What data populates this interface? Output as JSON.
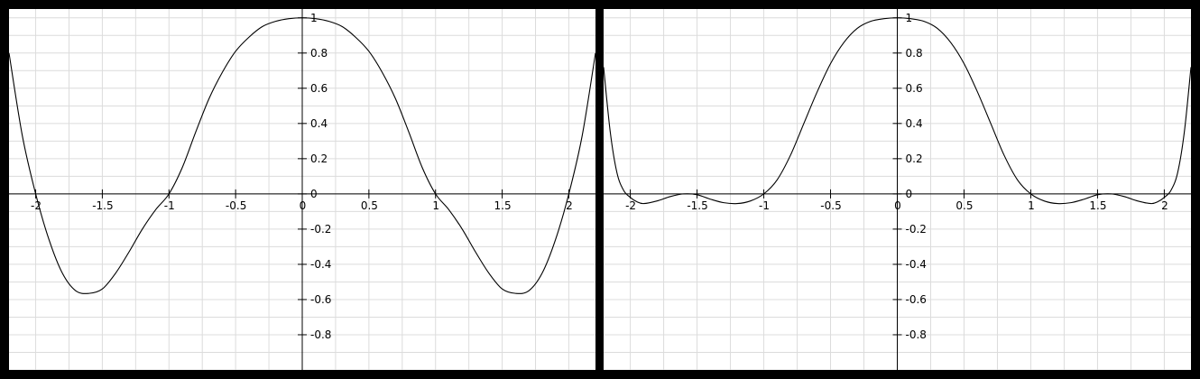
{
  "colors": {
    "background": "#000000",
    "plot_background": "#ffffff",
    "grid": "#dcdcdc",
    "axis": "#000000",
    "curve": "#000000"
  },
  "chart_data": [
    {
      "type": "line",
      "xlim": [
        -2.2,
        2.2
      ],
      "ylim": [
        -1.0,
        1.05
      ],
      "grid": true,
      "x_ticks": [
        -2,
        -1.5,
        -1,
        -0.5,
        0,
        0.5,
        1,
        1.5,
        2
      ],
      "y_ticks": [
        -0.8,
        -0.6,
        -0.4,
        -0.2,
        0,
        0.2,
        0.4,
        0.6,
        0.8,
        1
      ],
      "x_tick_labels": [
        "-2",
        "-1.5",
        "-1",
        "-0.5",
        "0",
        "0.5",
        "1",
        "1.5",
        "2"
      ],
      "y_tick_labels": [
        "-0.8",
        "-0.6",
        "-0.4",
        "-0.2",
        "0",
        "0.2",
        "0.4",
        "0.6",
        "0.8",
        "1"
      ],
      "series": [
        {
          "x": [
            -2.2,
            -2.1,
            -2.0,
            -1.9,
            -1.8,
            -1.7,
            -1.6,
            -1.5,
            -1.4,
            -1.3,
            -1.2,
            -1.1,
            -1.0,
            -0.9,
            -0.8,
            -0.7,
            -0.6,
            -0.5,
            -0.4,
            -0.3,
            -0.2,
            -0.1,
            0.0,
            0.1,
            0.2,
            0.3,
            0.4,
            0.5,
            0.6,
            0.7,
            0.8,
            0.9,
            1.0,
            1.1,
            1.2,
            1.3,
            1.4,
            1.5,
            1.6,
            1.7,
            1.8,
            1.9,
            2.0,
            2.1,
            2.2
          ],
          "y": [
            0.8,
            0.33,
            0.0,
            -0.26,
            -0.45,
            -0.55,
            -0.565,
            -0.54,
            -0.45,
            -0.33,
            -0.2,
            -0.09,
            0.0,
            0.15,
            0.35,
            0.54,
            0.69,
            0.81,
            0.89,
            0.95,
            0.98,
            0.995,
            1.0,
            0.995,
            0.98,
            0.95,
            0.89,
            0.81,
            0.69,
            0.54,
            0.35,
            0.15,
            0.0,
            -0.09,
            -0.2,
            -0.33,
            -0.45,
            -0.54,
            -0.565,
            -0.55,
            -0.45,
            -0.26,
            0.0,
            0.33,
            0.8
          ]
        }
      ]
    },
    {
      "type": "line",
      "xlim": [
        -2.2,
        2.2
      ],
      "ylim": [
        -1.0,
        1.05
      ],
      "grid": true,
      "x_ticks": [
        -2,
        -1.5,
        -1,
        -0.5,
        0,
        0.5,
        1,
        1.5,
        2
      ],
      "y_ticks": [
        -0.8,
        -0.6,
        -0.4,
        -0.2,
        0,
        0.2,
        0.4,
        0.6,
        0.8,
        1
      ],
      "x_tick_labels": [
        "-2",
        "-1.5",
        "-1",
        "-0.5",
        "0",
        "0.5",
        "1",
        "1.5",
        "2"
      ],
      "y_tick_labels": [
        "-0.8",
        "-0.6",
        "-0.4",
        "-0.2",
        "0",
        "0.2",
        "0.4",
        "0.6",
        "0.8",
        "1"
      ],
      "series": [
        {
          "x": [
            -2.2,
            -2.15,
            -2.1,
            -2.05,
            -2.0,
            -1.95,
            -1.9,
            -1.8,
            -1.7,
            -1.6,
            -1.5,
            -1.4,
            -1.3,
            -1.2,
            -1.1,
            -1.0,
            -0.9,
            -0.8,
            -0.7,
            -0.6,
            -0.5,
            -0.4,
            -0.3,
            -0.2,
            -0.1,
            0.0,
            0.1,
            0.2,
            0.3,
            0.4,
            0.5,
            0.6,
            0.7,
            0.8,
            0.9,
            1.0,
            1.1,
            1.2,
            1.3,
            1.4,
            1.5,
            1.6,
            1.7,
            1.8,
            1.9,
            1.95,
            2.0,
            2.05,
            2.1,
            2.15,
            2.2
          ],
          "y": [
            0.72,
            0.35,
            0.12,
            0.02,
            -0.02,
            -0.045,
            -0.055,
            -0.04,
            -0.015,
            0.0,
            -0.005,
            -0.03,
            -0.05,
            -0.055,
            -0.04,
            0.0,
            0.08,
            0.22,
            0.4,
            0.58,
            0.74,
            0.86,
            0.94,
            0.98,
            0.995,
            1.0,
            0.995,
            0.98,
            0.94,
            0.86,
            0.74,
            0.58,
            0.4,
            0.22,
            0.08,
            0.0,
            -0.04,
            -0.055,
            -0.05,
            -0.03,
            -0.005,
            0.0,
            -0.015,
            -0.04,
            -0.055,
            -0.045,
            -0.02,
            0.02,
            0.12,
            0.35,
            0.72
          ]
        }
      ]
    }
  ]
}
